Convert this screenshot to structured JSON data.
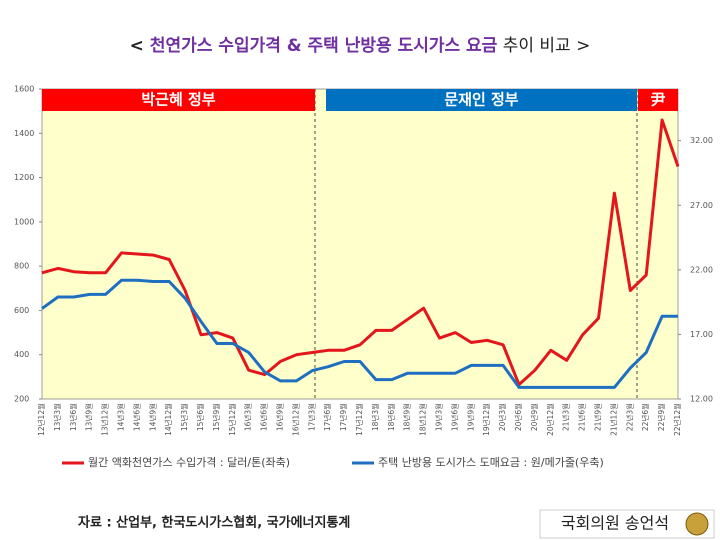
{
  "chart_data": {
    "type": "line",
    "title_parts": [
      "< ",
      "천연가스 수입가격 & 주택 난방용 도시가스 요금",
      " 추이 비교 >"
    ],
    "categories": [
      "12년12월",
      "13년3월",
      "13년6월",
      "13년9월",
      "13년12월",
      "14년3월",
      "14년6월",
      "14년9월",
      "14년12월",
      "15년3월",
      "15년6월",
      "15년9월",
      "15년12월",
      "16년3월",
      "16년6월",
      "16년9월",
      "16년12월",
      "17년3월",
      "17년6월",
      "17년9월",
      "17년12월",
      "18년3월",
      "18년6월",
      "18년9월",
      "18년12월",
      "19년3월",
      "19년6월",
      "19년9월",
      "19년12월",
      "20년3월",
      "20년6월",
      "20년9월",
      "20년12월",
      "21년3월",
      "21년6월",
      "21년9월",
      "21년12월",
      "22년3월",
      "22년6월",
      "22년9월",
      "22년12월"
    ],
    "series": [
      {
        "name": "월간 액화천연가스 수입가격 : 달러/톤(좌축)",
        "color": "#e3161c",
        "axis": "y",
        "values": [
          770,
          790,
          775,
          770,
          770,
          860,
          855,
          850,
          830,
          690,
          490,
          500,
          475,
          330,
          310,
          370,
          400,
          410,
          420,
          420,
          445,
          510,
          510,
          560,
          610,
          475,
          500,
          455,
          465,
          445,
          265,
          330,
          420,
          375,
          490,
          565,
          1130,
          690,
          760,
          1460,
          1250
        ]
      },
      {
        "name": "주택 난방용 도시가스 도매요금 : 원/메가줄(우축)",
        "color": "#1f6fc0",
        "axis": "y2",
        "values": [
          19.0,
          19.9,
          19.9,
          20.1,
          20.1,
          21.2,
          21.2,
          21.1,
          21.1,
          19.8,
          18.0,
          16.3,
          16.3,
          15.6,
          14.1,
          13.4,
          13.4,
          14.2,
          14.5,
          14.9,
          14.9,
          13.5,
          13.5,
          14.0,
          14.0,
          14.0,
          14.0,
          14.6,
          14.6,
          14.6,
          12.9,
          12.9,
          12.9,
          12.9,
          12.9,
          12.9,
          12.9,
          14.4,
          15.6,
          18.4,
          18.4
        ]
      }
    ],
    "ylim": [
      200,
      1600
    ],
    "yticks": [
      200,
      400,
      600,
      800,
      1000,
      1200,
      1400,
      1600
    ],
    "y2lim": [
      12,
      36
    ],
    "y2ticks": [
      {
        "value": 12,
        "label": "12.00"
      },
      {
        "value": 17,
        "label": "17.00"
      },
      {
        "value": 22,
        "label": "22.00"
      },
      {
        "value": 27,
        "label": "27.00"
      },
      {
        "value": 32,
        "label": "32.00"
      }
    ],
    "periods": [
      {
        "label": "박근혜 정부",
        "color": "#ff0000"
      },
      {
        "label": "문재인 정부",
        "color": "#0070c0"
      },
      {
        "label": "尹",
        "color": "#ff0000"
      }
    ],
    "source": "자료 : 산업부, 한국도시가스협회, 국가에너지통계",
    "author": "국회의원 송언석"
  }
}
